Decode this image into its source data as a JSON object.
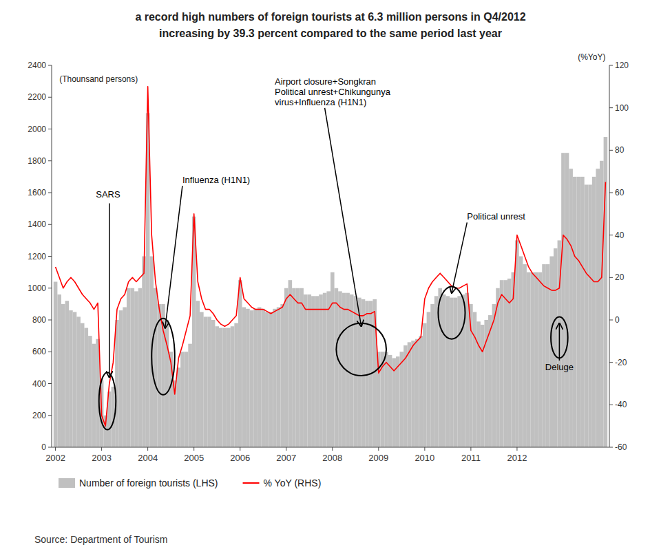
{
  "chart_data": {
    "type": "bar",
    "title": "a record high numbers of foreign tourists at 6.3 million persons in Q4/2012",
    "subtitle": "increasing by 39.3 percent compared to the same period last year",
    "source": "Source: Department of Tourism",
    "ylabel": "(Thounsand persons)",
    "y2label": "(%YoY)",
    "categories": [
      "2002",
      null,
      null,
      null,
      null,
      null,
      null,
      null,
      null,
      null,
      null,
      null,
      "2003",
      null,
      null,
      null,
      null,
      null,
      null,
      null,
      null,
      null,
      null,
      null,
      "2004",
      null,
      null,
      null,
      null,
      null,
      null,
      null,
      null,
      null,
      null,
      null,
      "2005",
      null,
      null,
      null,
      null,
      null,
      null,
      null,
      null,
      null,
      null,
      null,
      "2006",
      null,
      null,
      null,
      null,
      null,
      null,
      null,
      null,
      null,
      null,
      null,
      "2007",
      null,
      null,
      null,
      null,
      null,
      null,
      null,
      null,
      null,
      null,
      null,
      "2008",
      null,
      null,
      null,
      null,
      null,
      null,
      null,
      null,
      null,
      null,
      null,
      "2009",
      null,
      null,
      null,
      null,
      null,
      null,
      null,
      null,
      null,
      null,
      null,
      "2010",
      null,
      null,
      null,
      null,
      null,
      null,
      null,
      null,
      null,
      null,
      null,
      "2011",
      null,
      null,
      null,
      null,
      null,
      null,
      null,
      null,
      null,
      null,
      null,
      "2012",
      null,
      null,
      null,
      null,
      null,
      null,
      null,
      null,
      null,
      null,
      null,
      null,
      null,
      null,
      null,
      null,
      null,
      null,
      null,
      null,
      null,
      null,
      null
    ],
    "series": [
      {
        "name": "Number of foreign tourists (LHS)",
        "type": "bar",
        "color": "#c0c0c0",
        "values": [
          1040,
          960,
          900,
          920,
          860,
          850,
          820,
          780,
          750,
          700,
          650,
          680,
          420,
          200,
          350,
          380,
          800,
          860,
          880,
          1000,
          1000,
          980,
          1000,
          1200,
          2100,
          1200,
          1000,
          900,
          900,
          800,
          600,
          420,
          500,
          600,
          600,
          650,
          1450,
          920,
          850,
          820,
          820,
          800,
          760,
          750,
          750,
          750,
          760,
          780,
          1050,
          880,
          870,
          860,
          870,
          880,
          870,
          850,
          850,
          870,
          880,
          900,
          1000,
          1050,
          1000,
          1000,
          1000,
          960,
          960,
          950,
          950,
          960,
          970,
          980,
          1100,
          1000,
          980,
          970,
          970,
          960,
          950,
          940,
          930,
          920,
          920,
          930,
          600,
          600,
          600,
          580,
          560,
          570,
          600,
          640,
          660,
          670,
          680,
          700,
          780,
          850,
          900,
          950,
          1000,
          960,
          950,
          940,
          940,
          950,
          960,
          970,
          900,
          850,
          790,
          770,
          800,
          830,
          900,
          1000,
          1050,
          1050,
          1060,
          1100,
          1300,
          1200,
          1150,
          1100,
          1100,
          1100,
          1100,
          1150,
          1150,
          1200,
          1250,
          1300,
          1850,
          1850,
          1750,
          1700,
          1700,
          1700,
          1650,
          1650,
          1700,
          1750,
          1800,
          1950
        ]
      },
      {
        "name": "% YoY (RHS)",
        "type": "line",
        "color": "#ff0000",
        "axis": "y2",
        "values": [
          25,
          20,
          15,
          18,
          20,
          18,
          15,
          12,
          10,
          8,
          5,
          8,
          -45,
          -50,
          -30,
          -20,
          5,
          10,
          12,
          18,
          20,
          18,
          20,
          22,
          110,
          40,
          18,
          5,
          -5,
          -12,
          -20,
          -35,
          -18,
          -12,
          -5,
          2,
          50,
          18,
          10,
          5,
          5,
          3,
          0,
          -2,
          -3,
          -2,
          0,
          2,
          20,
          10,
          8,
          6,
          5,
          5,
          5,
          4,
          3,
          4,
          5,
          6,
          10,
          12,
          10,
          8,
          8,
          5,
          5,
          5,
          5,
          5,
          5,
          5,
          8,
          8,
          6,
          5,
          5,
          4,
          3,
          2,
          2,
          3,
          3,
          4,
          -25,
          -22,
          -20,
          -22,
          -24,
          -22,
          -20,
          -18,
          -15,
          -12,
          -10,
          -8,
          10,
          15,
          18,
          20,
          22,
          20,
          18,
          16,
          15,
          15,
          16,
          17,
          -5,
          -8,
          -12,
          -15,
          -10,
          -5,
          0,
          8,
          12,
          10,
          8,
          10,
          40,
          35,
          30,
          25,
          22,
          20,
          18,
          16,
          15,
          14,
          14,
          15,
          40,
          38,
          35,
          30,
          28,
          25,
          22,
          20,
          18,
          18,
          20,
          65
        ]
      }
    ],
    "ylim": [
      0,
      2400
    ],
    "yticks": [
      0,
      200,
      400,
      600,
      800,
      1000,
      1200,
      1400,
      1600,
      1800,
      2000,
      2200,
      2400
    ],
    "y2lim": [
      -60,
      120
    ],
    "y2ticks": [
      -60,
      -40,
      -20,
      0,
      20,
      40,
      60,
      80,
      100,
      120
    ],
    "grid": false,
    "legend": "bottom",
    "annotations": [
      "SARS",
      "Influenza (H1N1)",
      "Airport closure+Songkran\nPolitical unrest+Chikungunya\nvirus+Influenza (H1N1)",
      "Political unrest",
      "Deluge"
    ]
  }
}
